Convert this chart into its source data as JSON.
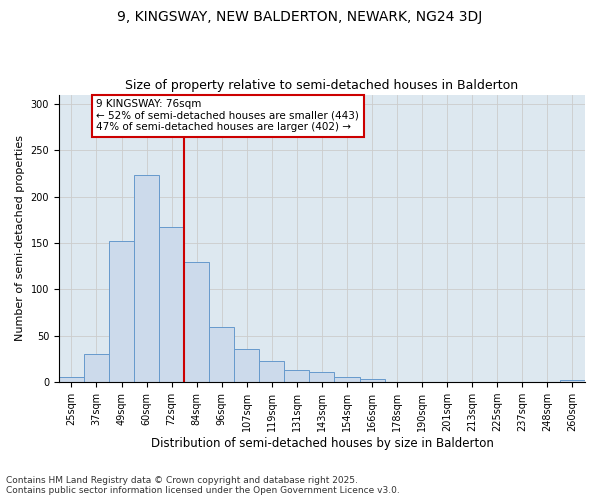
{
  "title1": "9, KINGSWAY, NEW BALDERTON, NEWARK, NG24 3DJ",
  "title2": "Size of property relative to semi-detached houses in Balderton",
  "xlabel": "Distribution of semi-detached houses by size in Balderton",
  "ylabel": "Number of semi-detached properties",
  "footnote": "Contains HM Land Registry data © Crown copyright and database right 2025.\nContains public sector information licensed under the Open Government Licence v3.0.",
  "categories": [
    "25sqm",
    "37sqm",
    "49sqm",
    "60sqm",
    "72sqm",
    "84sqm",
    "96sqm",
    "107sqm",
    "119sqm",
    "131sqm",
    "143sqm",
    "154sqm",
    "166sqm",
    "178sqm",
    "190sqm",
    "201sqm",
    "213sqm",
    "225sqm",
    "237sqm",
    "248sqm",
    "260sqm"
  ],
  "values": [
    6,
    30,
    152,
    223,
    167,
    130,
    59,
    36,
    23,
    13,
    11,
    6,
    3,
    0,
    0,
    0,
    0,
    0,
    0,
    0,
    2
  ],
  "bar_color": "#ccdaeb",
  "bar_edge_color": "#6699cc",
  "vline_x": 4.5,
  "vline_color": "#cc0000",
  "annotation_text": "9 KINGSWAY: 76sqm\n← 52% of semi-detached houses are smaller (443)\n47% of semi-detached houses are larger (402) →",
  "annotation_box_color": "#ffffff",
  "annotation_box_edge": "#cc0000",
  "ylim": [
    0,
    310
  ],
  "yticks": [
    0,
    50,
    100,
    150,
    200,
    250,
    300
  ],
  "grid_color": "#cccccc",
  "bg_color": "#dde8f0",
  "fig_bg_color": "#ffffff",
  "title1_fontsize": 10,
  "title2_fontsize": 9,
  "xlabel_fontsize": 8.5,
  "ylabel_fontsize": 8,
  "tick_fontsize": 7,
  "annotation_fontsize": 7.5,
  "footnote_fontsize": 6.5
}
